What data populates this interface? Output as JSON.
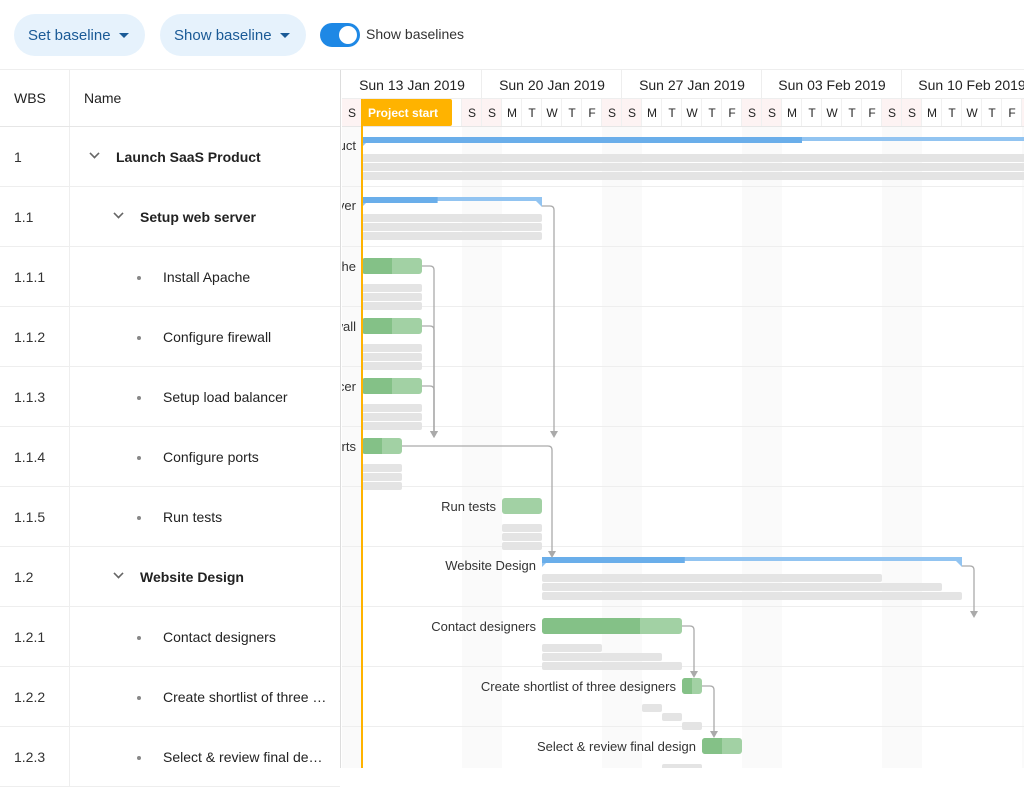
{
  "toolbar": {
    "set_baseline": "Set baseline",
    "show_baseline": "Show baseline",
    "toggle_label": "Show baselines",
    "toggle_on": true
  },
  "grid": {
    "columns": {
      "wbs": "WBS",
      "name": "Name"
    },
    "rows": [
      {
        "wbs": "1",
        "name": "Launch SaaS Product",
        "level": 0,
        "parent": true
      },
      {
        "wbs": "1.1",
        "name": "Setup web server",
        "level": 1,
        "parent": true
      },
      {
        "wbs": "1.1.1",
        "name": "Install Apache",
        "level": 2,
        "parent": false
      },
      {
        "wbs": "1.1.2",
        "name": "Configure firewall",
        "level": 2,
        "parent": false
      },
      {
        "wbs": "1.1.3",
        "name": "Setup load balancer",
        "level": 2,
        "parent": false
      },
      {
        "wbs": "1.1.4",
        "name": "Configure ports",
        "level": 2,
        "parent": false
      },
      {
        "wbs": "1.1.5",
        "name": "Run tests",
        "level": 2,
        "parent": false
      },
      {
        "wbs": "1.2",
        "name": "Website Design",
        "level": 1,
        "parent": true
      },
      {
        "wbs": "1.2.1",
        "name": "Contact designers",
        "level": 2,
        "parent": false
      },
      {
        "wbs": "1.2.2",
        "name": "Create shortlist of three designers",
        "level": 2,
        "parent": false
      },
      {
        "wbs": "1.2.3",
        "name": "Select & review final design",
        "level": 2,
        "parent": false
      }
    ]
  },
  "timeline": {
    "weeks": [
      "Sun 13 Jan 2019",
      "Sun 20 Jan 2019",
      "Sun 27 Jan 2019",
      "Sun 03 Feb 2019",
      "Sun 10 Feb 2019"
    ],
    "day_letters": [
      "S",
      "M",
      "T",
      "W",
      "T",
      "F",
      "S"
    ],
    "first_day_index": 0,
    "project_start_label": "Project start",
    "project_start_day": 1
  },
  "tasks": [
    {
      "label": "Launch SaaS Product",
      "start": 1,
      "end": 45,
      "progress": 50,
      "parent": true,
      "baselines": [
        [
          1,
          45
        ],
        [
          1,
          45
        ],
        [
          1,
          45
        ]
      ]
    },
    {
      "label": "Setup web server",
      "start": 1,
      "end": 10,
      "progress": 42,
      "parent": true,
      "baselines": [
        [
          1,
          10
        ],
        [
          1,
          10
        ],
        [
          1,
          10
        ]
      ]
    },
    {
      "label": "Install Apache",
      "start": 1,
      "end": 4,
      "progress": 50,
      "baselines": [
        [
          1,
          4
        ],
        [
          1,
          4
        ],
        [
          1,
          4
        ]
      ]
    },
    {
      "label": "Configure firewall",
      "start": 1,
      "end": 4,
      "progress": 50,
      "baselines": [
        [
          1,
          4
        ],
        [
          1,
          4
        ],
        [
          1,
          4
        ]
      ]
    },
    {
      "label": "Setup load balancer",
      "start": 1,
      "end": 4,
      "progress": 50,
      "baselines": [
        [
          1,
          4
        ],
        [
          1,
          4
        ],
        [
          1,
          4
        ]
      ]
    },
    {
      "label": "Configure ports",
      "start": 1,
      "end": 3,
      "progress": 50,
      "baselines": [
        [
          1,
          3
        ],
        [
          1,
          3
        ],
        [
          1,
          3
        ]
      ]
    },
    {
      "label": "Run tests",
      "start": 8,
      "end": 10,
      "progress": 0,
      "baselines": [
        [
          8,
          10
        ],
        [
          8,
          10
        ],
        [
          8,
          10
        ]
      ]
    },
    {
      "label": "Website Design",
      "start": 10,
      "end": 31,
      "progress": 34,
      "parent": true,
      "baselines": [
        [
          10,
          27
        ],
        [
          10,
          30
        ],
        [
          10,
          31
        ]
      ]
    },
    {
      "label": "Contact designers",
      "start": 10,
      "end": 17,
      "progress": 70,
      "baselines": [
        [
          10,
          13
        ],
        [
          10,
          16
        ],
        [
          10,
          17
        ]
      ]
    },
    {
      "label": "Create shortlist of three designers",
      "start": 17,
      "end": 18,
      "progress": 50,
      "baselines": [
        [
          15,
          16
        ],
        [
          16,
          17
        ],
        [
          17,
          18
        ]
      ]
    },
    {
      "label": "Select & review final design",
      "start": 18,
      "end": 20,
      "progress": 50,
      "baselines": [
        [
          16,
          18
        ],
        [
          17,
          19
        ],
        [
          18,
          20
        ]
      ]
    }
  ],
  "dependencies": [
    [
      2,
      6
    ],
    [
      3,
      6
    ],
    [
      4,
      6
    ],
    [
      5,
      6
    ],
    [
      6,
      8
    ],
    [
      8,
      9
    ],
    [
      9,
      10
    ],
    [
      10,
      11
    ]
  ],
  "colors": {
    "accent": "#1e88e5",
    "parent_done": "#6aaeea",
    "parent_todo": "#92c4f1",
    "task_done": "#84c187",
    "task_todo": "#a2d1a4",
    "baseline": "#e4e4e4",
    "start_line": "#ffb300",
    "weekend": "#fdf3f3"
  }
}
